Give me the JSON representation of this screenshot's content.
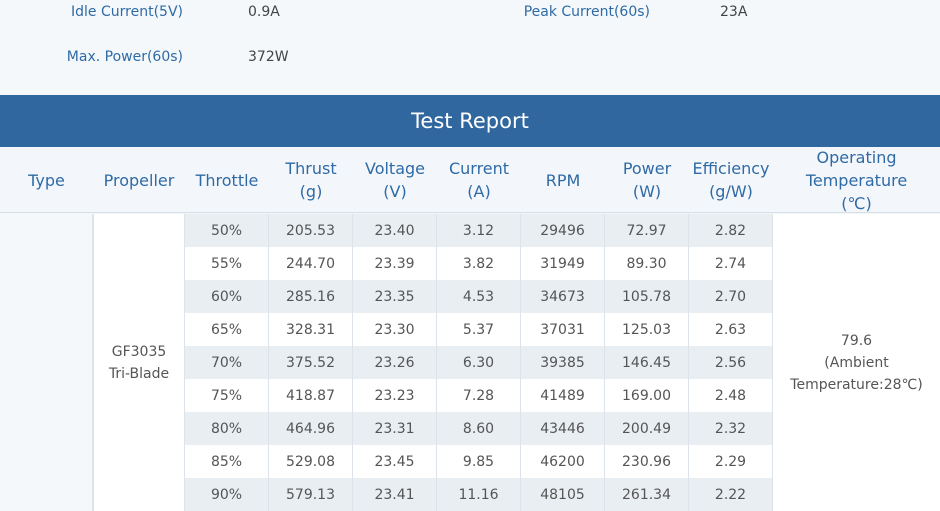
{
  "specs": [
    {
      "label": "Idle Current(5V)",
      "value": "0.9A"
    },
    {
      "label": "Peak Current(60s)",
      "value": "23A"
    },
    {
      "label": "Max. Power(60s)",
      "value": "372W"
    }
  ],
  "report": {
    "title": "Test Report",
    "headers": [
      [
        "Type"
      ],
      [
        "Propeller"
      ],
      [
        "Throttle"
      ],
      [
        "Thrust",
        "(g)"
      ],
      [
        "Voltage",
        "(V)"
      ],
      [
        "Current",
        "(A)"
      ],
      [
        "RPM"
      ],
      [
        "Power",
        "(W)"
      ],
      [
        "Efficiency",
        "(g/W)"
      ],
      [
        "Operating",
        "Temperature",
        "(℃)"
      ]
    ],
    "propeller": [
      "GF3035",
      "Tri-Blade"
    ],
    "temperature": [
      "79.6",
      "(Ambient",
      "Temperature:28℃)"
    ],
    "rows": [
      [
        "50%",
        "205.53",
        "23.40",
        "3.12",
        "29496",
        "72.97",
        "2.82"
      ],
      [
        "55%",
        "244.70",
        "23.39",
        "3.82",
        "31949",
        "89.30",
        "2.74"
      ],
      [
        "60%",
        "285.16",
        "23.35",
        "4.53",
        "34673",
        "105.78",
        "2.70"
      ],
      [
        "65%",
        "328.31",
        "23.30",
        "5.37",
        "37031",
        "125.03",
        "2.63"
      ],
      [
        "70%",
        "375.52",
        "23.26",
        "6.30",
        "39385",
        "146.45",
        "2.56"
      ],
      [
        "75%",
        "418.87",
        "23.23",
        "7.28",
        "41489",
        "169.00",
        "2.48"
      ],
      [
        "80%",
        "464.96",
        "23.31",
        "8.60",
        "43446",
        "200.49",
        "2.32"
      ],
      [
        "85%",
        "529.08",
        "23.45",
        "9.85",
        "46200",
        "230.96",
        "2.29"
      ],
      [
        "90%",
        "579.13",
        "23.41",
        "11.16",
        "48105",
        "261.34",
        "2.22"
      ]
    ]
  }
}
